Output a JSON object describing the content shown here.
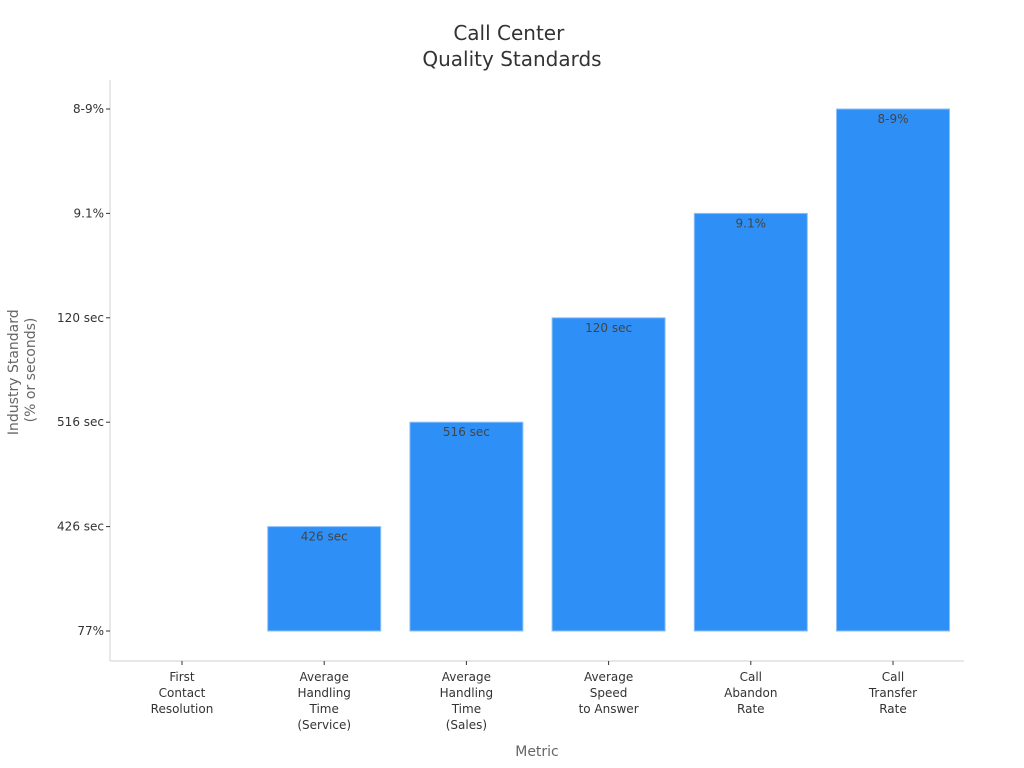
{
  "chart_data": {
    "type": "bar",
    "title": [
      "Call Center",
      "Quality Standards"
    ],
    "xlabel": "Metric",
    "ylabel": [
      "Industry Standard",
      "(% or seconds)"
    ],
    "y_ticks": [
      "77%",
      "426 sec",
      "516 sec",
      "120 sec",
      "9.1%",
      "8-9%"
    ],
    "categories": [
      [
        "First",
        "Contact",
        "Resolution"
      ],
      [
        "Average",
        "Handling",
        "Time",
        "(Service)"
      ],
      [
        "Average",
        "Handling",
        "Time",
        "(Sales)"
      ],
      [
        "Average",
        "Speed",
        "to Answer"
      ],
      [
        "Call",
        "Abandon",
        "Rate"
      ],
      [
        "Call",
        "Transfer",
        "Rate"
      ]
    ],
    "values": [
      "77%",
      "426 sec",
      "516 sec",
      "120 sec",
      "9.1%",
      "8-9%"
    ],
    "bar_labels": [
      "",
      "426 sec",
      "516 sec",
      "120 sec",
      "9.1%",
      "8-9%"
    ],
    "colors": {
      "bar": "#2e8ff6",
      "bar_edge": "#8cc1fa"
    },
    "grid": false,
    "legend": "none"
  }
}
